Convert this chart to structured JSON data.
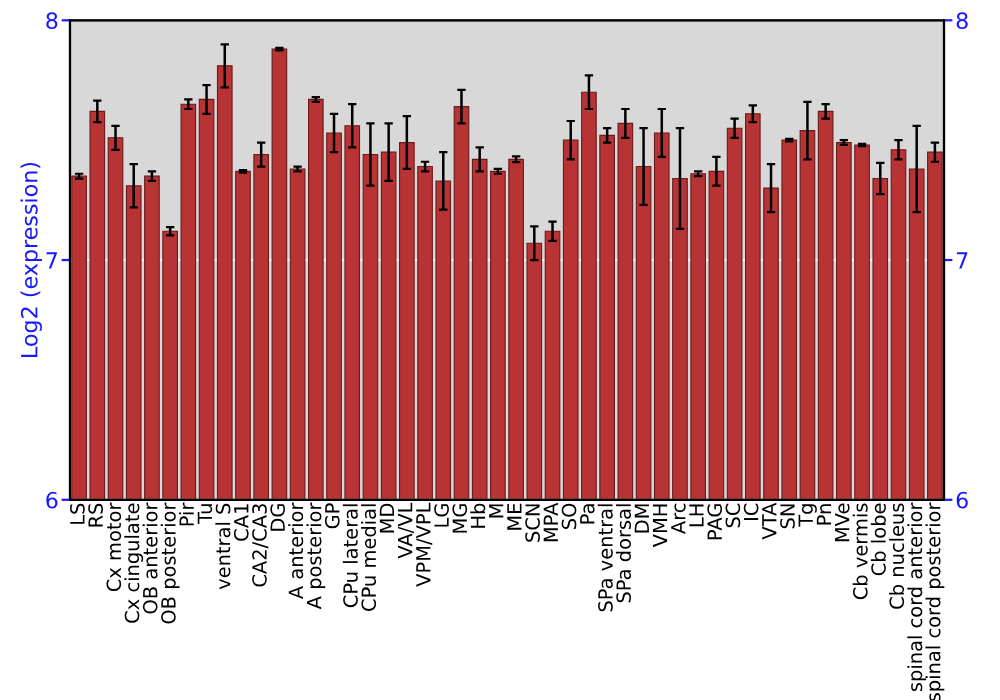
{
  "chart_data": {
    "type": "bar",
    "ylabel": "Log2 (expression)",
    "categories": [
      "LS",
      "RS",
      "Cx motor",
      "Cx cingulate",
      "OB anterior",
      "OB posterior",
      "Pir",
      "Tu",
      "ventral S",
      "CA1",
      "CA2/CA3",
      "DG",
      "A anterior",
      "A posterior",
      "GP",
      "CPu lateral",
      "CPu medial",
      "MD",
      "VA/VL",
      "VPM/VPL",
      "LG",
      "MG",
      "Hb",
      "M",
      "ME",
      "SCN",
      "MPA",
      "SO",
      "Pa",
      "SPa ventral",
      "SPa dorsal",
      "DM",
      "VMH",
      "Arc",
      "LH",
      "PAG",
      "SC",
      "IC",
      "VTA",
      "SN",
      "Tg",
      "Pn",
      "MVe",
      "Cb vermis",
      "Cb lobe",
      "Cb nucleus",
      "spinal cord anterior",
      "spinal cord posterior"
    ],
    "series": [
      {
        "color": "#b83434",
        "values": [
          7.35,
          7.62,
          7.51,
          7.31,
          7.35,
          7.12,
          7.65,
          7.67,
          7.81,
          7.37,
          7.44,
          7.88,
          7.38,
          7.67,
          7.53,
          7.56,
          7.44,
          7.45,
          7.49,
          7.39,
          7.33,
          7.64,
          7.42,
          7.37,
          7.42,
          7.07,
          7.12,
          7.5,
          7.7,
          7.52,
          7.57,
          7.39,
          7.53,
          7.34,
          7.36,
          7.37,
          7.55,
          7.61,
          7.3,
          7.5,
          7.54,
          7.62,
          7.49,
          7.48,
          7.34,
          7.46,
          7.38,
          7.45
        ],
        "errors": [
          0.01,
          0.045,
          0.05,
          0.09,
          0.02,
          0.017,
          0.02,
          0.06,
          0.09,
          0.005,
          0.05,
          0.005,
          0.01,
          0.01,
          0.08,
          0.09,
          0.13,
          0.12,
          0.11,
          0.02,
          0.12,
          0.07,
          0.05,
          0.01,
          0.012,
          0.07,
          0.04,
          0.08,
          0.07,
          0.03,
          0.06,
          0.16,
          0.1,
          0.21,
          0.01,
          0.06,
          0.04,
          0.035,
          0.1,
          0.005,
          0.12,
          0.03,
          0.01,
          0.005,
          0.065,
          0.04,
          0.18,
          0.04
        ]
      }
    ],
    "ylim": [
      6,
      8
    ],
    "yticks": [
      6,
      7,
      8
    ],
    "y2lim": [
      6,
      8
    ],
    "y2ticks": [
      6,
      7,
      8
    ],
    "grid": "y"
  }
}
